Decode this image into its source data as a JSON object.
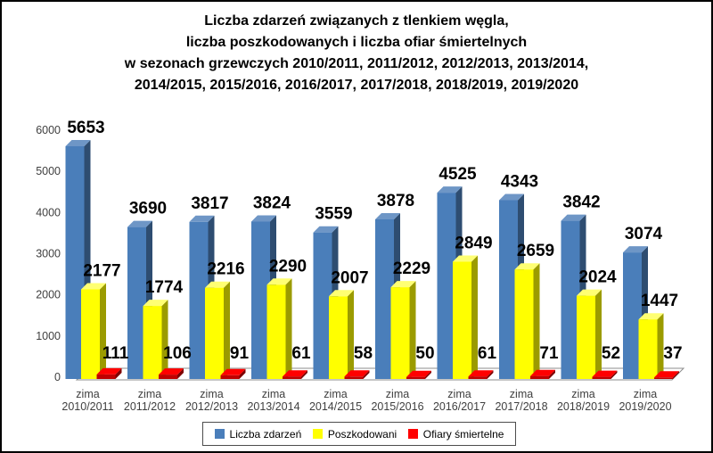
{
  "title": {
    "lines": [
      "Liczba zdarzeń związanych z tlenkiem węgla,",
      "liczba poszkodowanych i liczba ofiar śmiertelnych",
      "w sezonach grzewczych 2010/2011, 2011/2012, 2012/2013, 2013/2014,",
      "2014/2015, 2015/2016, 2016/2017, 2017/2018, 2018/2019, 2019/2020"
    ]
  },
  "chart_data": {
    "type": "bar",
    "style": "3d-clustered-column",
    "title": "Liczba zdarzeń związanych z tlenkiem węgla, liczba poszkodowanych i liczba ofiar śmiertelnych w sezonach grzewczych 2010/2011, 2011/2012, 2012/2013, 2013/2014, 2014/2015, 2015/2016, 2016/2017, 2017/2018, 2018/2019, 2019/2020",
    "category_line1": "zima",
    "categories": [
      "2010/2011",
      "2011/2012",
      "2012/2013",
      "2013/2014",
      "2014/2015",
      "2015/2016",
      "2016/2017",
      "2017/2018",
      "2018/2019",
      "2019/2020"
    ],
    "series": [
      {
        "name": "Liczba zdarzeń",
        "values": [
          5653,
          3690,
          3817,
          3824,
          3559,
          3878,
          4525,
          4343,
          3842,
          3074
        ],
        "color_front": "#4A7EBA",
        "color_side": "#2E4D71",
        "color_top": "#6E96C6"
      },
      {
        "name": "Poszkodowani",
        "values": [
          2177,
          1774,
          2216,
          2290,
          2007,
          2229,
          2849,
          2659,
          2024,
          1447
        ],
        "color_front": "#FFFF00",
        "color_side": "#9B9B00",
        "color_top": "#FFFF73"
      },
      {
        "name": "Ofiary śmiertelne",
        "values": [
          111,
          106,
          91,
          61,
          58,
          50,
          61,
          71,
          52,
          37
        ],
        "color_front": "#C00000",
        "color_side": "#7F0000",
        "color_top": "#FF0000"
      }
    ],
    "ylim": [
      0,
      6000
    ],
    "yticks": [
      0,
      1000,
      2000,
      3000,
      4000,
      5000,
      6000
    ],
    "xlabel": "",
    "ylabel": "",
    "grid": false,
    "data_labels": true,
    "legend_position": "bottom"
  },
  "legend": {
    "items": [
      {
        "label": "Liczba zdarzeń",
        "color": "#4A7EBA"
      },
      {
        "label": "Poszkodowani",
        "color": "#FFFF00"
      },
      {
        "label": "Ofiary śmiertelne",
        "color": "#FF0000"
      }
    ]
  }
}
